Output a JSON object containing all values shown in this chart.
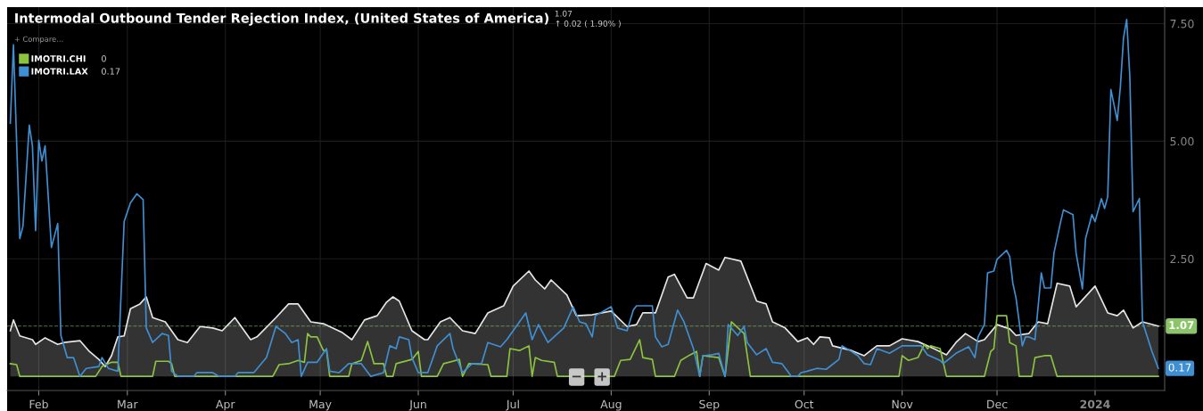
{
  "chart_data": {
    "type": "line",
    "title": "Intermodal Outbound Tender Rejection Index, (United States of America)",
    "xlim": [
      "2023-01-22",
      "2024-01-23"
    ],
    "ylim": [
      -0.3,
      7.85
    ],
    "xticks": [
      {
        "value": "2023-02-01",
        "label": "Feb"
      },
      {
        "value": "2023-03-01",
        "label": "Mar"
      },
      {
        "value": "2023-04-01",
        "label": "Apr"
      },
      {
        "value": "2023-05-01",
        "label": "May"
      },
      {
        "value": "2023-06-01",
        "label": "Jun"
      },
      {
        "value": "2023-07-01",
        "label": "Jul"
      },
      {
        "value": "2023-08-01",
        "label": "Aug"
      },
      {
        "value": "2023-09-01",
        "label": "Sep"
      },
      {
        "value": "2023-10-01",
        "label": "Oct"
      },
      {
        "value": "2023-11-01",
        "label": "Nov"
      },
      {
        "value": "2023-12-01",
        "label": "Dec"
      },
      {
        "value": "2024-01-01",
        "label": "2024"
      }
    ],
    "yticks": [
      {
        "value": 2.5,
        "label": "2.50"
      },
      {
        "value": 5.0,
        "label": "5.00"
      },
      {
        "value": 7.5,
        "label": "7.50"
      }
    ],
    "grid": true,
    "legend": "top left",
    "ref_lines": [
      {
        "axis": "y",
        "value": 1.07,
        "label": "1.07",
        "color": "#8cc46a",
        "line_style": "dashed"
      }
    ],
    "annotations": [
      "+ Compare...",
      "1.07",
      "↑ 0.02 ( 1.90% )",
      "0",
      "0.17",
      {
        "text": "0.17",
        "x": "2024-01-21",
        "y": 0.17
      },
      "−",
      "+"
    ],
    "series": [
      {
        "type": "area",
        "color": "#e6e6e6",
        "x": [
          "2023-01-23",
          "2023-01-24",
          "2023-01-26",
          "2023-01-30",
          "2023-01-31",
          "2023-02-03",
          "2023-02-07",
          "2023-02-09",
          "2023-02-14",
          "2023-02-17",
          "2023-02-20",
          "2023-02-22",
          "2023-02-24",
          "2023-02-26",
          "2023-02-28",
          "2023-03-02",
          "2023-03-05",
          "2023-03-07",
          "2023-03-09",
          "2023-03-13",
          "2023-03-17",
          "2023-03-20",
          "2023-03-24",
          "2023-03-28",
          "2023-03-31",
          "2023-04-04",
          "2023-04-09",
          "2023-04-11",
          "2023-04-17",
          "2023-04-21",
          "2023-04-24",
          "2023-04-28",
          "2023-05-02",
          "2023-05-08",
          "2023-05-11",
          "2023-05-15",
          "2023-05-19",
          "2023-05-22",
          "2023-05-24",
          "2023-05-26",
          "2023-05-30",
          "2023-06-03",
          "2023-06-04",
          "2023-06-08",
          "2023-06-11",
          "2023-06-15",
          "2023-06-19",
          "2023-06-23",
          "2023-06-28",
          "2023-07-01",
          "2023-07-06",
          "2023-07-08",
          "2023-07-11",
          "2023-07-13",
          "2023-07-18",
          "2023-07-21",
          "2023-07-26",
          "2023-08-01",
          "2023-08-06",
          "2023-08-09",
          "2023-08-11",
          "2023-08-15",
          "2023-08-19",
          "2023-08-21",
          "2023-08-25",
          "2023-08-27",
          "2023-08-31",
          "2023-09-04",
          "2023-09-06",
          "2023-09-11",
          "2023-09-16",
          "2023-09-19",
          "2023-09-21",
          "2023-09-25",
          "2023-09-29",
          "2023-10-02",
          "2023-10-04",
          "2023-10-06",
          "2023-10-09",
          "2023-10-10",
          "2023-10-16",
          "2023-10-20",
          "2023-10-24",
          "2023-10-28",
          "2023-11-01",
          "2023-11-06",
          "2023-11-11",
          "2023-11-15",
          "2023-11-18",
          "2023-11-21",
          "2023-11-25",
          "2023-11-27",
          "2023-12-01",
          "2023-12-05",
          "2023-12-07",
          "2023-12-11",
          "2023-12-14",
          "2023-12-17",
          "2023-12-20",
          "2023-12-24",
          "2023-12-26",
          "2024-01-01",
          "2024-01-05",
          "2024-01-08",
          "2024-01-10",
          "2024-01-13",
          "2024-01-16",
          "2024-01-21"
        ],
        "values": [
          0.97,
          1.2,
          0.86,
          0.78,
          0.68,
          0.82,
          0.68,
          0.72,
          0.76,
          0.53,
          0.36,
          0.21,
          0.44,
          0.84,
          0.86,
          1.44,
          1.54,
          1.69,
          1.25,
          1.16,
          0.78,
          0.72,
          1.06,
          1.03,
          0.97,
          1.25,
          0.78,
          0.84,
          1.25,
          1.54,
          1.54,
          1.16,
          1.12,
          0.93,
          0.78,
          1.2,
          1.29,
          1.58,
          1.69,
          1.6,
          0.97,
          0.78,
          0.78,
          1.16,
          1.25,
          0.97,
          0.91,
          1.35,
          1.5,
          1.92,
          2.24,
          2.05,
          1.86,
          2.05,
          1.73,
          1.29,
          1.31,
          1.39,
          1.06,
          1.1,
          1.35,
          1.35,
          2.11,
          2.17,
          1.67,
          1.67,
          2.4,
          2.26,
          2.53,
          2.45,
          1.6,
          1.54,
          1.16,
          1.03,
          0.74,
          0.82,
          0.68,
          0.84,
          0.82,
          0.65,
          0.55,
          0.44,
          0.65,
          0.65,
          0.8,
          0.74,
          0.59,
          0.46,
          0.72,
          0.91,
          0.74,
          0.78,
          1.1,
          1.01,
          0.87,
          0.91,
          1.16,
          1.12,
          1.98,
          1.92,
          1.48,
          1.92,
          1.35,
          1.29,
          1.41,
          1.03,
          1.16,
          1.07
        ]
      },
      {
        "name": "IMOTRI.CHI",
        "color": "#8cc43f",
        "x": [
          "2023-01-23",
          "2023-01-25",
          "2023-01-26",
          "2023-02-19",
          "2023-02-21",
          "2023-02-24",
          "2023-02-26",
          "2023-02-27",
          "2023-03-09",
          "2023-03-10",
          "2023-03-14",
          "2023-03-15",
          "2023-03-16",
          "2023-04-16",
          "2023-04-18",
          "2023-04-21",
          "2023-04-24",
          "2023-04-26",
          "2023-04-27",
          "2023-04-28",
          "2023-04-30",
          "2023-05-02",
          "2023-05-03",
          "2023-05-04",
          "2023-05-10",
          "2023-05-11",
          "2023-05-14",
          "2023-05-16",
          "2023-05-18",
          "2023-05-21",
          "2023-05-22",
          "2023-05-24",
          "2023-05-25",
          "2023-05-30",
          "2023-06-01",
          "2023-06-02",
          "2023-06-07",
          "2023-06-09",
          "2023-06-14",
          "2023-06-15",
          "2023-06-17",
          "2023-06-23",
          "2023-06-24",
          "2023-06-29",
          "2023-06-30",
          "2023-07-03",
          "2023-07-06",
          "2023-07-07",
          "2023-07-08",
          "2023-07-10",
          "2023-07-14",
          "2023-07-15",
          "2023-08-02",
          "2023-08-04",
          "2023-08-07",
          "2023-08-10",
          "2023-08-11",
          "2023-08-14",
          "2023-08-15",
          "2023-08-21",
          "2023-08-23",
          "2023-08-26",
          "2023-08-28",
          "2023-08-29",
          "2023-08-30",
          "2023-09-04",
          "2023-09-06",
          "2023-09-08",
          "2023-09-12",
          "2023-09-14",
          "2023-10-31",
          "2023-11-01",
          "2023-11-03",
          "2023-11-06",
          "2023-11-08",
          "2023-11-09",
          "2023-11-10",
          "2023-11-13",
          "2023-11-15",
          "2023-11-27",
          "2023-11-29",
          "2023-11-30",
          "2023-12-01",
          "2023-12-04",
          "2023-12-05",
          "2023-12-07",
          "2023-12-08",
          "2023-12-12",
          "2023-12-13",
          "2023-12-16",
          "2023-12-18",
          "2023-12-20",
          "2024-01-21"
        ],
        "values": [
          0.27,
          0.25,
          0,
          0,
          0.21,
          0.3,
          0.3,
          0,
          0,
          0.32,
          0.32,
          0.27,
          0,
          0,
          0.25,
          0.27,
          0.34,
          0.3,
          0.91,
          0.84,
          0.84,
          0.55,
          0.55,
          0,
          0,
          0.27,
          0.34,
          0.74,
          0.27,
          0.27,
          0,
          0,
          0.27,
          0.36,
          0.53,
          0,
          0,
          0.27,
          0.36,
          0,
          0.27,
          0.25,
          0,
          0,
          0.59,
          0.55,
          0.65,
          0,
          0.4,
          0.34,
          0.3,
          0,
          0,
          0.34,
          0.36,
          0.78,
          0.4,
          0.36,
          0,
          0,
          0.34,
          0.46,
          0.53,
          0,
          0.44,
          0.4,
          0,
          1.16,
          0.91,
          0,
          0,
          0.44,
          0.34,
          0.4,
          0.68,
          0.59,
          0.65,
          0.59,
          0,
          0,
          0.53,
          0.59,
          1.29,
          1.29,
          0.72,
          0.65,
          0,
          0,
          0.4,
          0.44,
          0.44,
          0,
          0
        ]
      },
      {
        "name": "IMOTRI.LAX",
        "color": "#3f8fd2",
        "x": [
          "2023-01-23",
          "2023-01-24",
          "2023-01-26",
          "2023-01-27",
          "2023-01-29",
          "2023-01-30",
          "2023-01-31",
          "2023-02-01",
          "2023-02-02",
          "2023-02-03",
          "2023-02-05",
          "2023-02-07",
          "2023-02-08",
          "2023-02-10",
          "2023-02-12",
          "2023-02-14",
          "2023-02-16",
          "2023-02-20",
          "2023-02-21",
          "2023-02-23",
          "2023-02-26",
          "2023-02-28",
          "2023-03-02",
          "2023-03-04",
          "2023-03-06",
          "2023-03-07",
          "2023-03-09",
          "2023-03-12",
          "2023-03-14",
          "2023-03-15",
          "2023-03-17",
          "2023-03-22",
          "2023-03-23",
          "2023-03-28",
          "2023-03-30",
          "2023-04-04",
          "2023-04-05",
          "2023-04-10",
          "2023-04-14",
          "2023-04-17",
          "2023-04-20",
          "2023-04-22",
          "2023-04-24",
          "2023-04-25",
          "2023-04-27",
          "2023-04-30",
          "2023-05-03",
          "2023-05-04",
          "2023-05-07",
          "2023-05-10",
          "2023-05-14",
          "2023-05-17",
          "2023-05-21",
          "2023-05-23",
          "2023-05-25",
          "2023-05-26",
          "2023-05-29",
          "2023-05-30",
          "2023-06-01",
          "2023-06-04",
          "2023-06-07",
          "2023-06-11",
          "2023-06-12",
          "2023-06-15",
          "2023-06-18",
          "2023-06-21",
          "2023-06-23",
          "2023-06-27",
          "2023-06-29",
          "2023-07-05",
          "2023-07-07",
          "2023-07-09",
          "2023-07-12",
          "2023-07-17",
          "2023-07-20",
          "2023-07-22",
          "2023-07-24",
          "2023-07-26",
          "2023-07-27",
          "2023-08-01",
          "2023-08-03",
          "2023-08-06",
          "2023-08-08",
          "2023-08-09",
          "2023-08-14",
          "2023-08-15",
          "2023-08-17",
          "2023-08-19",
          "2023-08-22",
          "2023-08-24",
          "2023-08-27",
          "2023-08-29",
          "2023-08-30",
          "2023-09-02",
          "2023-09-04",
          "2023-09-06",
          "2023-09-07",
          "2023-09-10",
          "2023-09-12",
          "2023-09-13",
          "2023-09-16",
          "2023-09-19",
          "2023-09-21",
          "2023-09-24",
          "2023-09-27",
          "2023-09-29",
          "2023-09-30",
          "2023-10-02",
          "2023-10-05",
          "2023-10-08",
          "2023-10-12",
          "2023-10-13",
          "2023-10-16",
          "2023-10-18",
          "2023-10-20",
          "2023-10-22",
          "2023-10-24",
          "2023-10-28",
          "2023-11-01",
          "2023-11-07",
          "2023-11-09",
          "2023-11-13",
          "2023-11-14",
          "2023-11-18",
          "2023-11-22",
          "2023-11-24",
          "2023-11-25",
          "2023-11-27",
          "2023-11-28",
          "2023-11-30",
          "2023-12-01",
          "2023-12-04",
          "2023-12-05",
          "2023-12-06",
          "2023-12-07",
          "2023-12-09",
          "2023-12-10",
          "2023-12-11",
          "2023-12-13",
          "2023-12-15",
          "2023-12-16",
          "2023-12-18",
          "2023-12-19",
          "2023-12-21",
          "2023-12-22",
          "2023-12-25",
          "2023-12-26",
          "2023-12-28",
          "2023-12-29",
          "2023-12-31",
          "2024-01-01",
          "2024-01-03",
          "2024-01-04",
          "2024-01-05",
          "2024-01-06",
          "2024-01-08",
          "2024-01-09",
          "2024-01-10",
          "2024-01-11",
          "2024-01-12",
          "2024-01-13",
          "2024-01-15",
          "2024-01-16",
          "2024-01-19",
          "2024-01-21"
        ],
        "values": [
          5.38,
          7.05,
          2.93,
          3.19,
          5.34,
          4.9,
          3.1,
          5.02,
          4.58,
          4.9,
          2.74,
          3.25,
          0.87,
          0.4,
          0.4,
          0,
          0.17,
          0.21,
          0.4,
          0.17,
          0.11,
          3.29,
          3.69,
          3.88,
          3.76,
          1.03,
          0.72,
          0.91,
          0.87,
          0.11,
          0,
          0,
          0.08,
          0.08,
          0,
          0,
          0.08,
          0.08,
          0.4,
          1.06,
          0.91,
          0.72,
          0.78,
          0,
          0.3,
          0.3,
          0.59,
          0.11,
          0.08,
          0.27,
          0.27,
          0,
          0.08,
          0.65,
          0.59,
          0.84,
          0.78,
          0.4,
          0.08,
          0.08,
          0.65,
          0.91,
          0.59,
          0.08,
          0.27,
          0.27,
          0.72,
          0.63,
          0.78,
          1.35,
          0.78,
          1.1,
          0.72,
          1.03,
          1.48,
          1.16,
          1.12,
          0.84,
          1.29,
          1.48,
          1.03,
          0.97,
          1.41,
          1.5,
          1.5,
          0.84,
          0.63,
          0.68,
          1.41,
          1.16,
          0.59,
          0,
          0.44,
          0.46,
          0.49,
          0,
          1.1,
          0.87,
          1.06,
          0.72,
          0.46,
          0.59,
          0.3,
          0.27,
          0,
          0,
          0.08,
          0.11,
          0.17,
          0.15,
          0.36,
          0.65,
          0.53,
          0.44,
          0.27,
          0.25,
          0.59,
          0.49,
          0.65,
          0.65,
          0.46,
          0.34,
          0.27,
          0.49,
          0.63,
          0.4,
          0.84,
          1.1,
          2.2,
          2.24,
          2.49,
          2.68,
          2.55,
          1.98,
          1.67,
          0.65,
          0.84,
          0.84,
          0.78,
          2.2,
          1.88,
          1.88,
          2.62,
          3.25,
          3.54,
          3.44,
          2.62,
          1.86,
          2.93,
          3.44,
          3.29,
          3.78,
          3.57,
          3.82,
          6.1,
          5.44,
          6.16,
          7.2,
          7.59,
          6.35,
          3.5,
          3.78,
          1.16,
          0.53,
          0.17
        ]
      }
    ]
  }
}
